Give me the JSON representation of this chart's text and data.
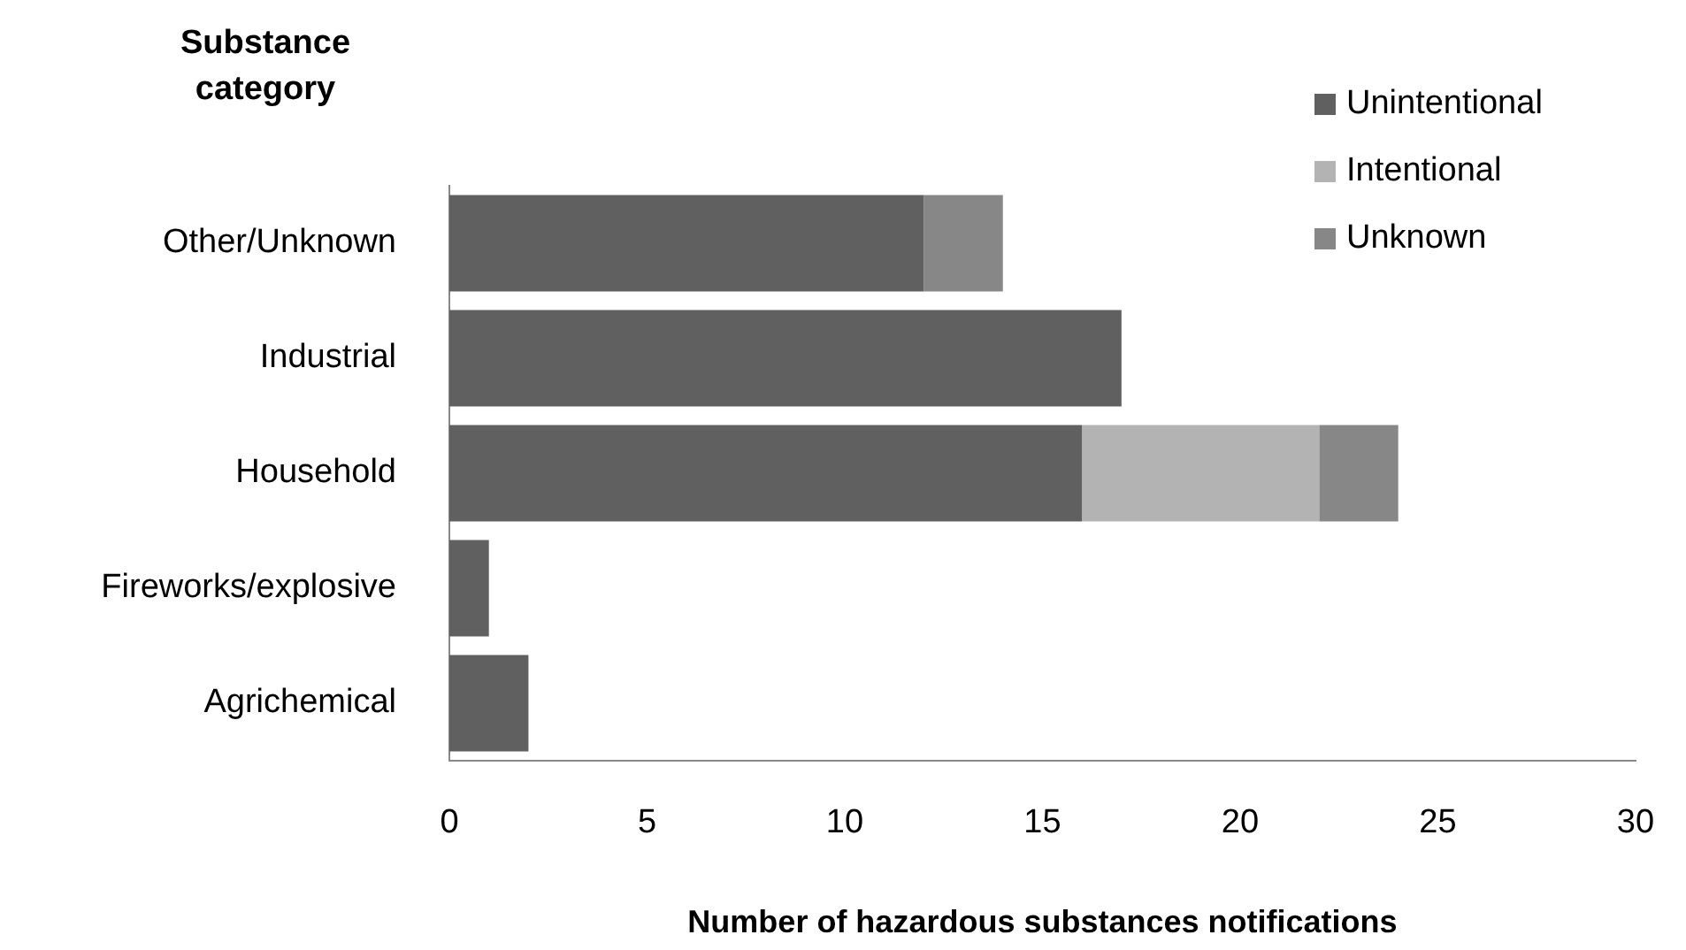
{
  "chart_data": {
    "type": "bar",
    "orientation": "horizontal",
    "stacked": true,
    "ylabel": "Substance category",
    "xlabel": "Number of hazardous substances notifications",
    "categories": [
      "Other/Unknown",
      "Industrial",
      "Household",
      "Fireworks/explosive",
      "Agrichemical"
    ],
    "series": [
      {
        "name": "Unintentional",
        "color": "#606060",
        "values": [
          12,
          17,
          16,
          1,
          2
        ]
      },
      {
        "name": "Intentional",
        "color": "#b3b3b3",
        "values": [
          0,
          0,
          6,
          0,
          0
        ]
      },
      {
        "name": "Unknown",
        "color": "#878787",
        "values": [
          2,
          0,
          2,
          0,
          0
        ]
      }
    ],
    "xlim": [
      0,
      30
    ],
    "xticks": [
      0,
      5,
      10,
      15,
      20,
      25,
      30
    ],
    "grid": false,
    "legend": "top right"
  }
}
